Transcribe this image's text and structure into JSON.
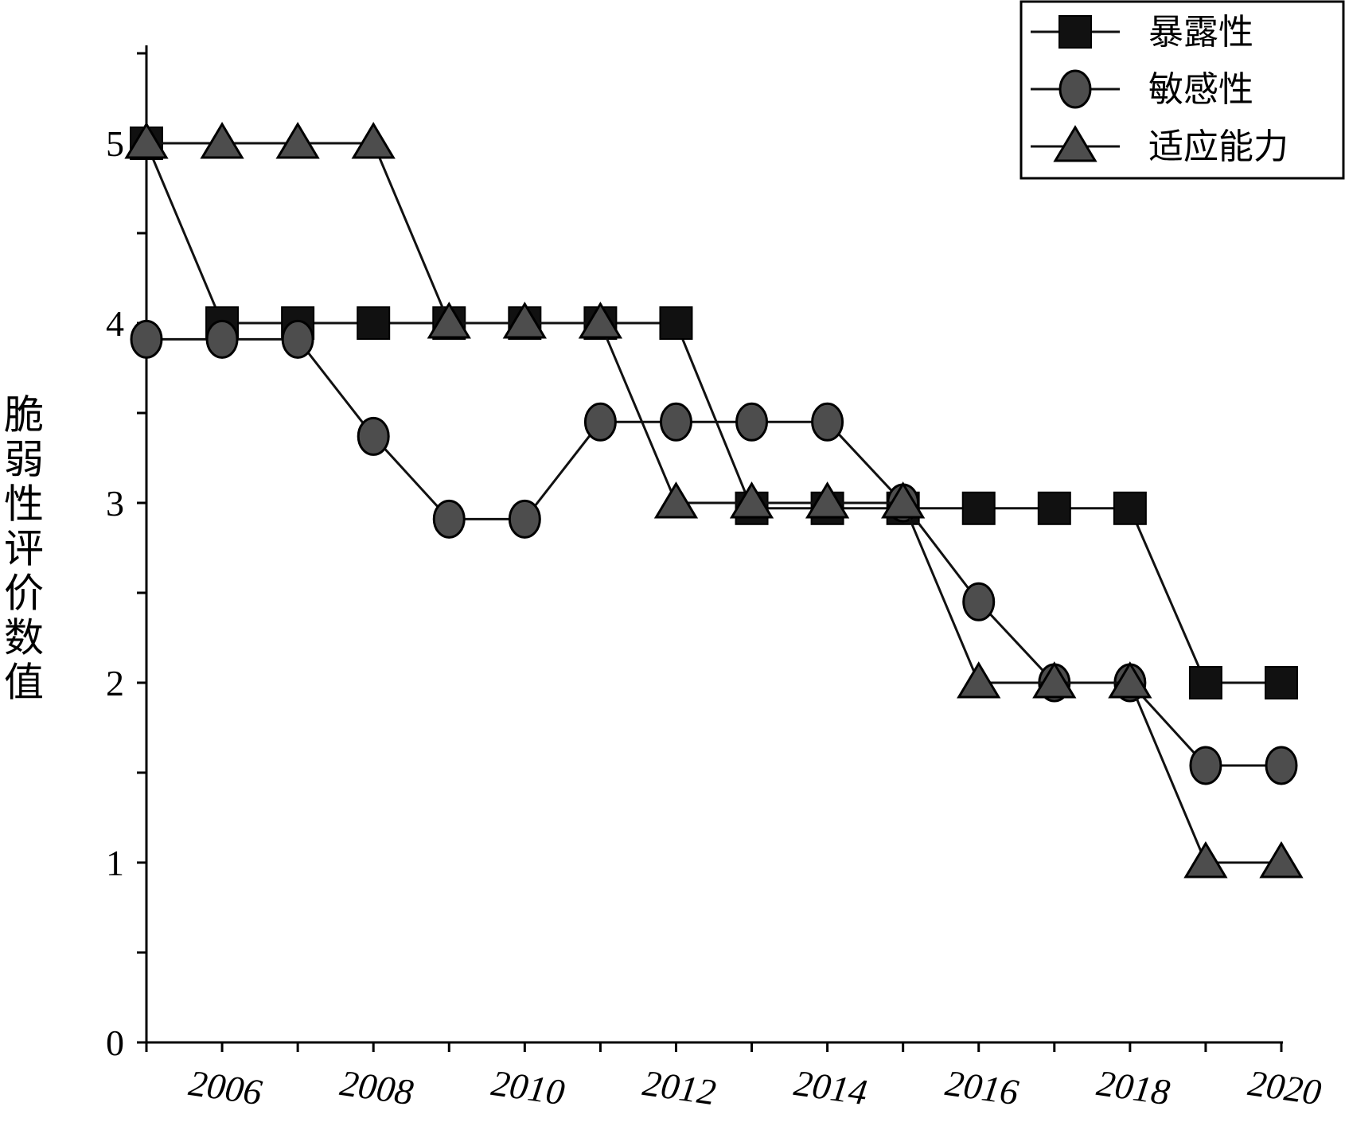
{
  "chart_data": {
    "type": "line",
    "ylabel": "脆弱性评价数值",
    "xlabel": "",
    "x": [
      2005,
      2006,
      2007,
      2008,
      2009,
      2010,
      2011,
      2012,
      2013,
      2014,
      2015,
      2016,
      2017,
      2018,
      2019,
      2020
    ],
    "x_tick_labels": [
      "2006",
      "2008",
      "2010",
      "2012",
      "2014",
      "2016",
      "2018",
      "2020"
    ],
    "y_tick_labels": [
      "0",
      "1",
      "2",
      "3",
      "4",
      "5"
    ],
    "ylim": [
      0,
      5.5
    ],
    "xlim": [
      2005,
      2020
    ],
    "grid": false,
    "legend_position": "top-right",
    "series": [
      {
        "name": "暴露性",
        "marker": "square",
        "color": "#111111",
        "values": [
          5.0,
          4.0,
          4.0,
          4.0,
          4.0,
          4.0,
          4.0,
          4.0,
          2.97,
          2.97,
          2.97,
          2.97,
          2.97,
          2.97,
          2.0,
          2.0
        ]
      },
      {
        "name": "敏感性",
        "marker": "circle",
        "color": "#4d4d4d",
        "values": [
          3.91,
          3.91,
          3.91,
          3.37,
          2.91,
          2.91,
          3.45,
          3.45,
          3.45,
          3.45,
          3.0,
          2.45,
          2.0,
          2.0,
          1.54,
          1.54
        ]
      },
      {
        "name": "适应能力",
        "marker": "triangle",
        "color": "#4d4d4d",
        "values": [
          5.0,
          5.0,
          5.0,
          5.0,
          4.0,
          4.0,
          4.0,
          3.0,
          3.0,
          3.0,
          3.0,
          2.0,
          2.0,
          2.0,
          1.0,
          1.0
        ]
      }
    ]
  }
}
